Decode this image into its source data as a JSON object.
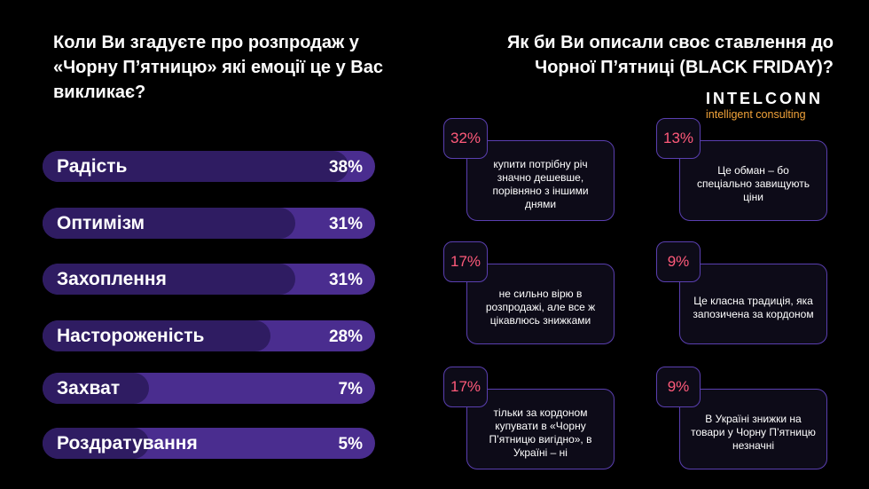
{
  "left_title": "Коли Ви згадуєте про розпродаж у «Чорну П’ятницю» які емоції це у Вас викликає?",
  "right_title": "Як би Ви описали своє ставлення до Чорної П’ятниці (BLACK FRIDAY)?",
  "brand": {
    "name": "INTELCONN",
    "sub": "intelligent consulting"
  },
  "colors": {
    "bar_track": "#4a2d8f",
    "bar_fill": "#2f1c62",
    "card_border": "#5a3fb0",
    "percent_text": "#ff5a7a",
    "brand_sub": "#f2a33a"
  },
  "chart_data": [
    {
      "type": "bar",
      "orientation": "horizontal",
      "title": "Коли Ви згадуєте про розпродаж у «Чорну П’ятницю» які емоції це у Вас викликає?",
      "categories": [
        "Радість",
        "Оптимізм",
        "Захоплення",
        "Настороженість",
        "Захват",
        "Роздратування"
      ],
      "values": [
        38,
        31,
        31,
        28,
        7,
        5
      ],
      "value_labels": [
        "38%",
        "31%",
        "31%",
        "28%",
        "7%",
        "5%"
      ]
    },
    {
      "type": "table",
      "title": "Як би Ви описали своє ставлення до Чорної П’ятниці (BLACK FRIDAY)?",
      "items": [
        {
          "value": "32%",
          "text": "купити потрібну річ значно дешевше, порівняно з іншими днями"
        },
        {
          "value": "13%",
          "text": "Це обман – бо спеціально завищують ціни"
        },
        {
          "value": "17%",
          "text": "не сильно вірю в розпродажі, але все ж цікавлюсь знижками"
        },
        {
          "value": "9%",
          "text": "Це класна традиція, яка запозичена за кордоном"
        },
        {
          "value": "17%",
          "text": "тільки за кордоном купувати в «Чорну П’ятницю вигідно», в Україні – ні"
        },
        {
          "value": "9%",
          "text": "В Україні знижки на товари у Чорну П’ятницю незначні"
        }
      ]
    }
  ]
}
